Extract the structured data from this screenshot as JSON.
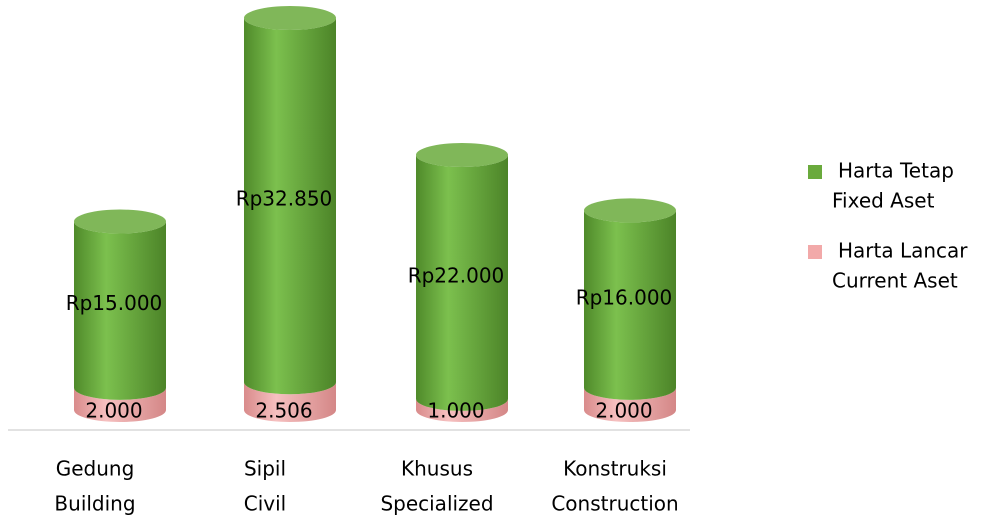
{
  "chart_data": {
    "type": "bar",
    "stacked": true,
    "categories": [
      [
        "Gedung",
        "Building"
      ],
      [
        "Sipil",
        "Civil"
      ],
      [
        "Khusus",
        "Specialized"
      ],
      [
        "Konstruksi",
        "Construction"
      ]
    ],
    "series": [
      {
        "name": [
          "Harta Lancar",
          "Current Aset"
        ],
        "color": "#f2a9a9",
        "values": [
          2000,
          2506,
          1000,
          2000
        ],
        "value_labels": [
          "2.000",
          "2.506",
          "1.000",
          "2.000"
        ]
      },
      {
        "name": [
          "Harta Tetap",
          "Fixed Aset"
        ],
        "color": "#6aaa3c",
        "values": [
          15000,
          32850,
          22000,
          16000
        ],
        "value_labels": [
          "Rp15.000",
          "Rp32.850",
          "Rp22.000",
          "Rp16.000"
        ]
      }
    ],
    "legend": "right"
  }
}
